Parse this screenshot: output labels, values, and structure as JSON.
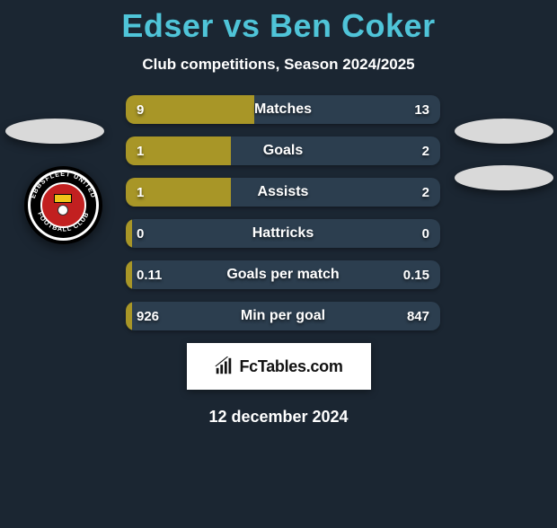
{
  "title_color": "#4fc4d8",
  "background_color": "#1b2632",
  "player_left": "Edser",
  "vs_text": "vs",
  "player_right": "Ben Coker",
  "subtitle": "Club competitions, Season 2024/2025",
  "bar_left_color": "#a89627",
  "bar_right_color": "#2c3e4f",
  "bar_border_color": "#0f171f",
  "stats": [
    {
      "label": "Matches",
      "left_val": "9",
      "right_val": "13",
      "left_pct": 40.9,
      "right_pct": 59.1
    },
    {
      "label": "Goals",
      "left_val": "1",
      "right_val": "2",
      "left_pct": 33.3,
      "right_pct": 66.7
    },
    {
      "label": "Assists",
      "left_val": "1",
      "right_val": "2",
      "left_pct": 33.3,
      "right_pct": 66.7
    },
    {
      "label": "Hattricks",
      "left_val": "0",
      "right_val": "0",
      "left_pct": 2.0,
      "right_pct": 98.0
    },
    {
      "label": "Goals per match",
      "left_val": "0.11",
      "right_val": "0.15",
      "left_pct": 2.0,
      "right_pct": 98.0
    },
    {
      "label": "Min per goal",
      "left_val": "926",
      "right_val": "847",
      "left_pct": 2.0,
      "right_pct": 98.0
    }
  ],
  "club_left": {
    "top_text": "EBBSFLEET UNITED",
    "bottom_text": "FOOTBALL CLUB"
  },
  "footer_brand": "FcTables.com",
  "footer_date": "12 december 2024"
}
